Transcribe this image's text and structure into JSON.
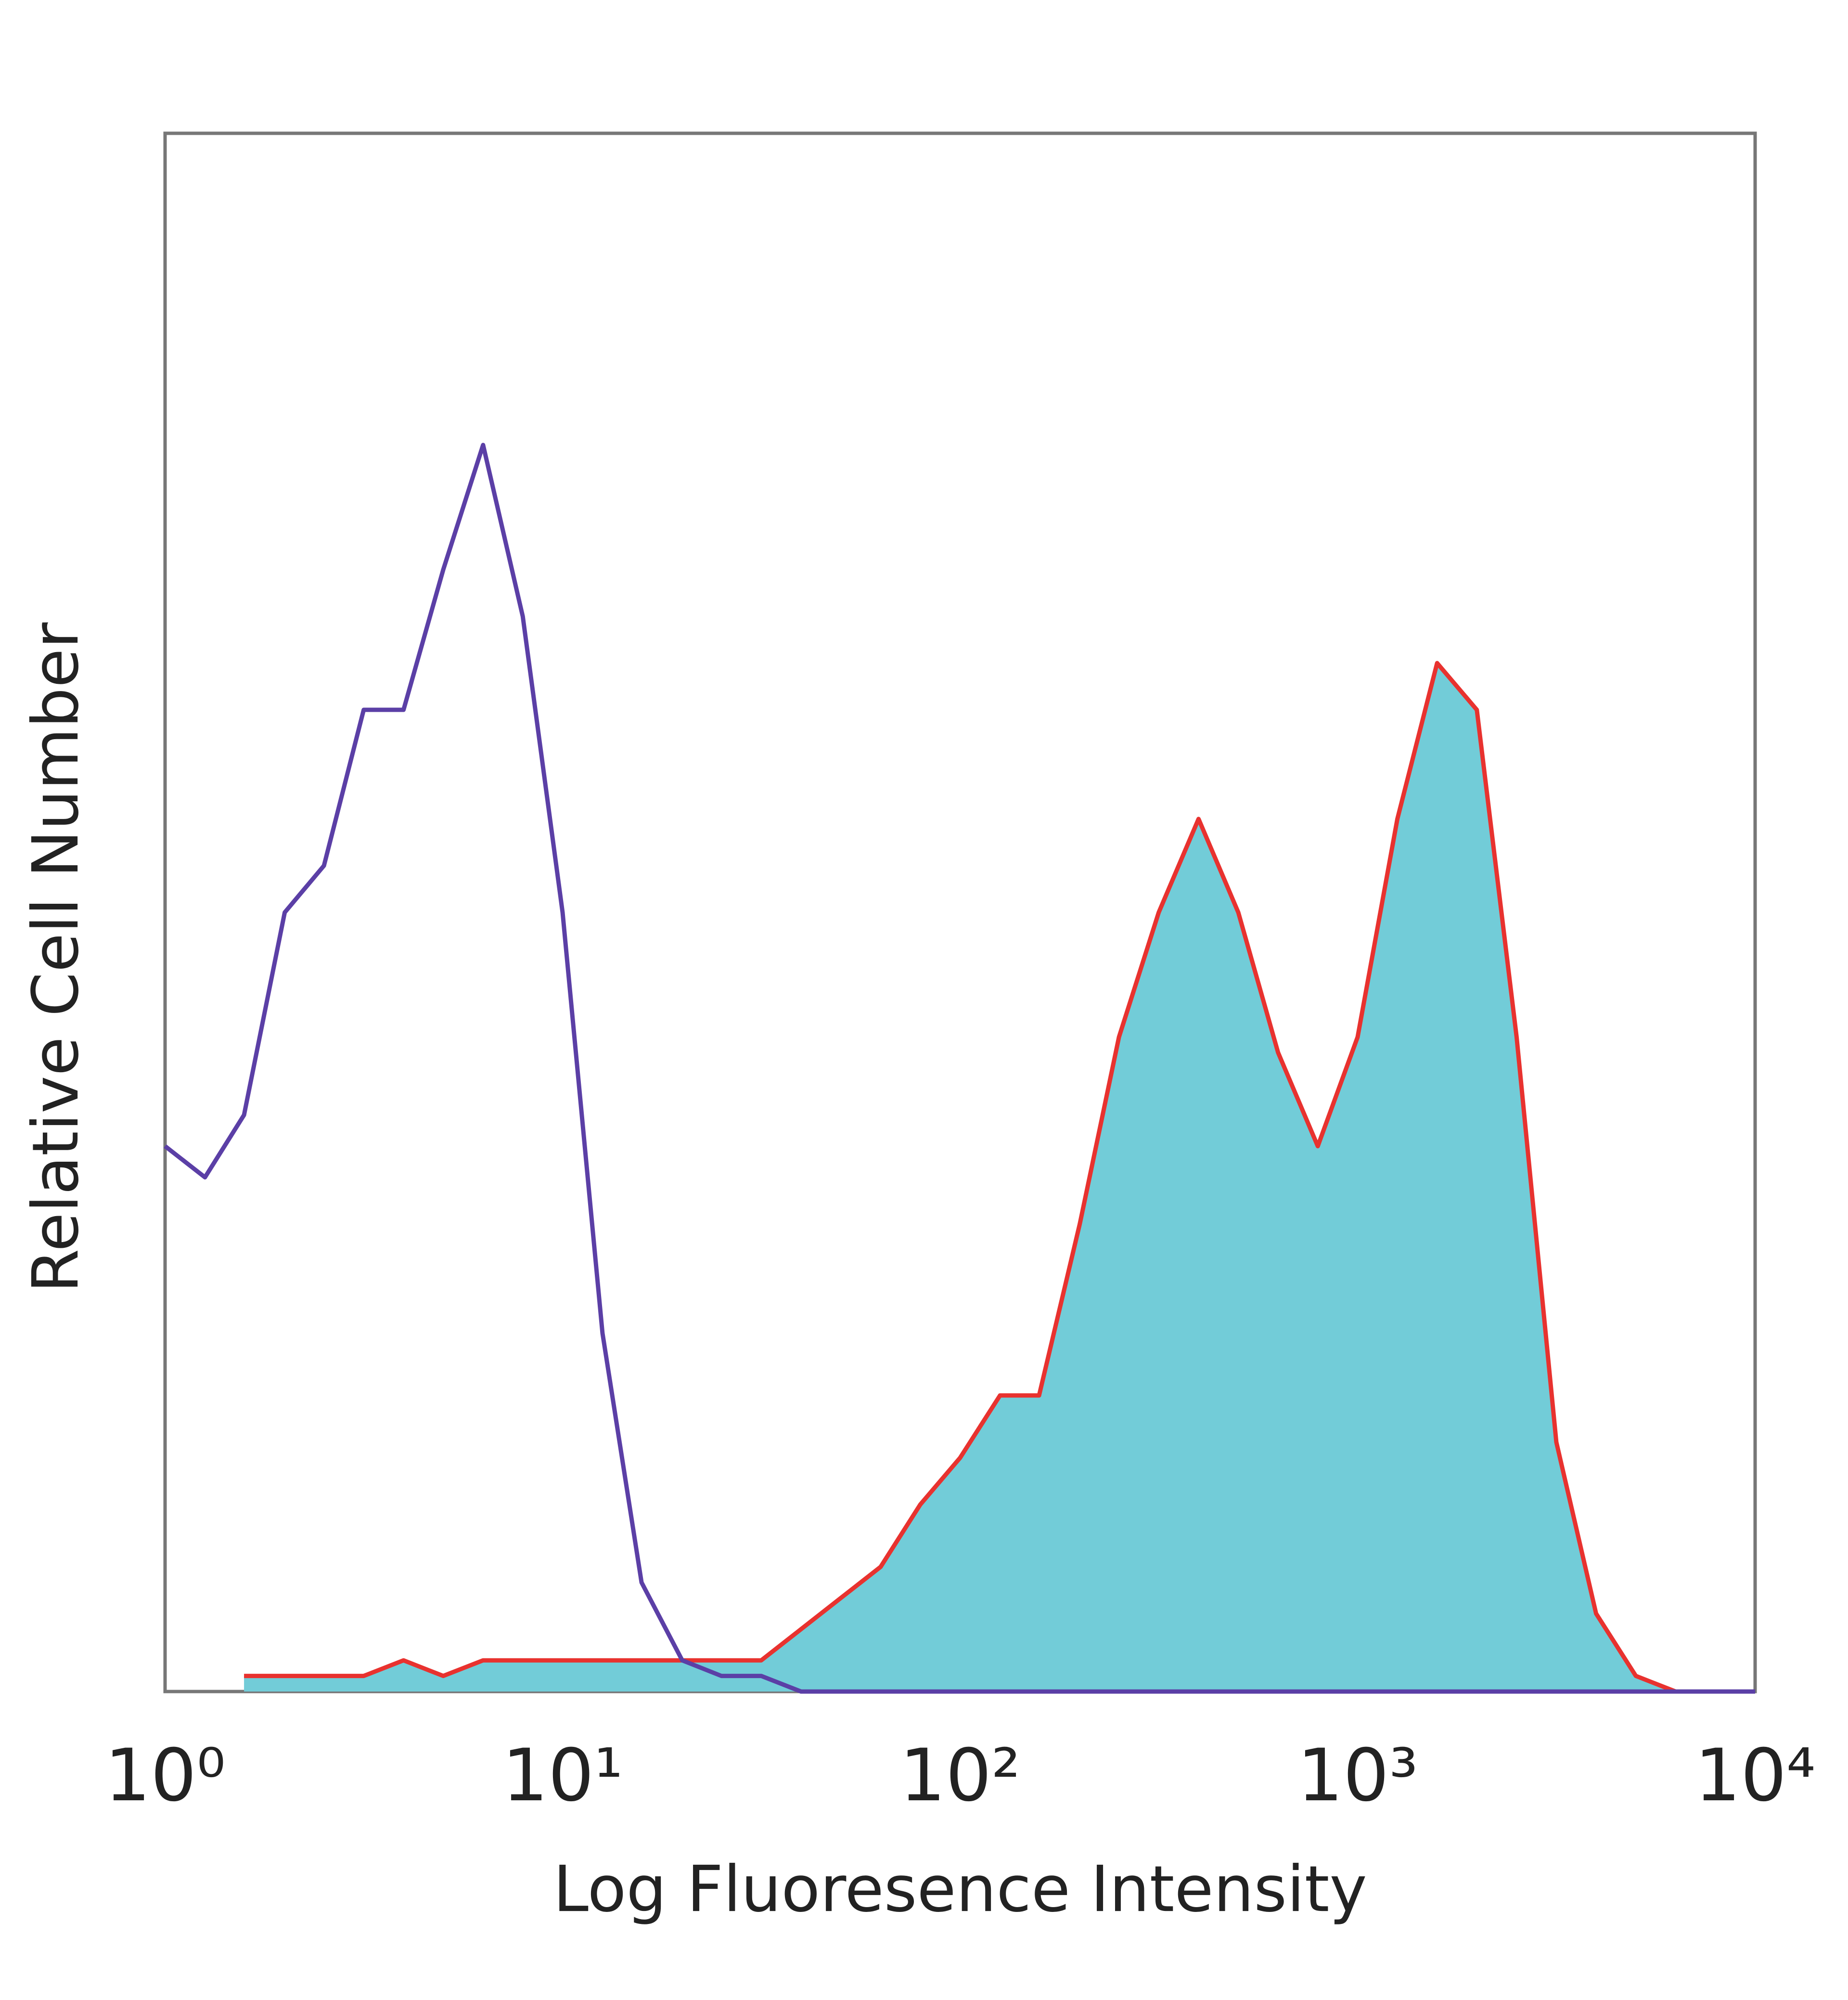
{
  "chart_data": {
    "type": "line",
    "x_label": "Log Fluoresence Intensity",
    "y_label": "Relative Cell Number",
    "xscale": "log",
    "xlim": [
      1,
      10000
    ],
    "xticks": [
      {
        "value": 1,
        "label": "10⁰"
      },
      {
        "value": 10,
        "label": "10¹"
      },
      {
        "value": 100,
        "label": "10²"
      },
      {
        "value": 1000,
        "label": "10³"
      },
      {
        "value": 10000,
        "label": "10⁴"
      }
    ],
    "ylim": [
      0,
      100
    ],
    "x": [
      1,
      1.26,
      1.58,
      2,
      2.51,
      3.16,
      3.98,
      5.01,
      6.31,
      7.94,
      10,
      12.6,
      15.8,
      20,
      25.1,
      31.6,
      39.8,
      50.1,
      63.1,
      79.4,
      100,
      126,
      158,
      200,
      251,
      316,
      398,
      501,
      631,
      794,
      1000,
      1259,
      1585,
      1995,
      2512,
      3162,
      3981,
      5012,
      6310,
      7943,
      10000
    ],
    "series": [
      {
        "color": "#e8322f",
        "fill": "#72ccd8",
        "values": [
          null,
          null,
          1,
          1,
          1,
          1,
          2,
          1,
          2,
          2,
          2,
          2,
          2,
          2,
          2,
          2,
          4,
          6,
          8,
          12,
          15,
          19,
          19,
          30,
          42,
          50,
          56,
          50,
          41,
          35,
          42,
          56,
          66,
          63,
          42,
          16,
          5,
          1,
          0,
          0,
          0
        ]
      },
      {
        "color": "#5b3fa6",
        "values": [
          35,
          33,
          37,
          50,
          53,
          63,
          63,
          72,
          80,
          69,
          50,
          23,
          7,
          2,
          1,
          1,
          0,
          0,
          0,
          0,
          0,
          0,
          0,
          0,
          0,
          0,
          0,
          0,
          0,
          0,
          0,
          0,
          0,
          0,
          0,
          0,
          0,
          0,
          0,
          0,
          0
        ]
      }
    ]
  }
}
